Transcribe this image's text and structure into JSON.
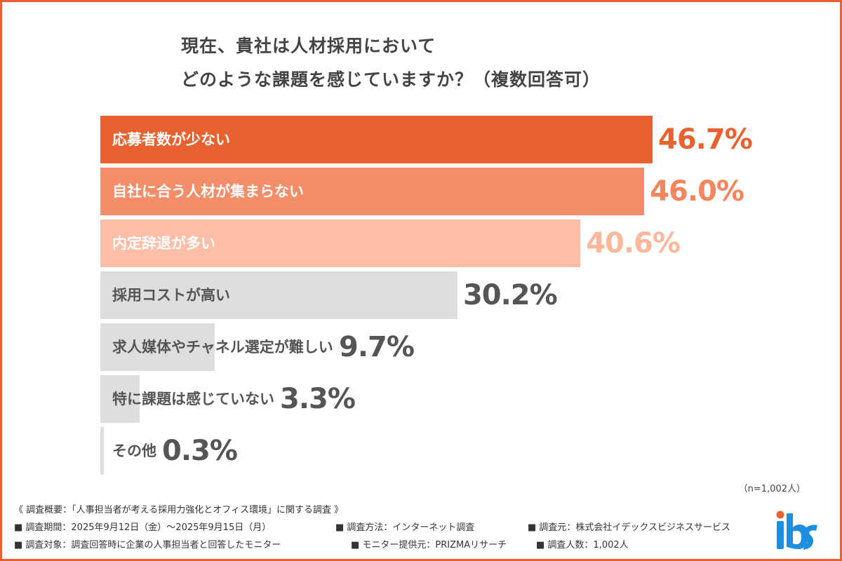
{
  "chart_data": {
    "type": "bar",
    "orientation": "horizontal",
    "title": "現在、貴社は人材採用において どのような課題を感じていますか？（複数回答可）",
    "title_lines": [
      "現在、貴社は人材採用において",
      "どのような課題を感じていますか？（複数回答可）"
    ],
    "categories": [
      "応募者数が少ない",
      "自社に合う人材が集まらない",
      "内定辞退が多い",
      "採用コストが高い",
      "求人媒体やチャネル選定が難しい",
      "特に課題は感じていない",
      "その他"
    ],
    "values": [
      46.7,
      46.0,
      40.6,
      30.2,
      9.7,
      3.3,
      0.3
    ],
    "value_labels": [
      "46.7%",
      "46.0%",
      "40.6%",
      "30.2%",
      "9.7%",
      "3.3%",
      "0.3%"
    ],
    "unit": "%",
    "xlim": [
      0,
      46.7
    ],
    "grid": false,
    "bar_colors": [
      "#E8622F",
      "#F58D68",
      "#FDBDA6",
      "#DEDEDE",
      "#DEDEDE",
      "#DEDEDE",
      "#DEDEDE"
    ],
    "label_colors": [
      "#FFFFFF",
      "#FFFFFF",
      "#FFFFFF",
      "#555555",
      "#555555",
      "#555555",
      "#555555"
    ],
    "value_colors": [
      "#E8622F",
      "#F4855C",
      "#FDB89C",
      "#555555",
      "#555555",
      "#555555",
      "#555555"
    ],
    "note": "（n=1,002人）"
  },
  "footer": {
    "summary": "《 調査概要：「人事担当者が考える採用力強化とオフィス環境」に関する調査 》",
    "period": "■ 調査期間：2025年9月12日（金）～2025年9月15日（月）",
    "method": "■ 調査方法：インターネット調査",
    "source": "■ 調査元：株式会社イデックスビジネスサービス",
    "target": "■ 調査対象：調査回答時に企業の人事担当者と回答したモニター",
    "provider": "■ モニター提供元：PRIZMAリサーチ",
    "count": "■ 調査人数：1,002人"
  },
  "logo": {
    "text": "ibs",
    "color": "#1E8FE0",
    "dot_color": "#E8622F"
  }
}
